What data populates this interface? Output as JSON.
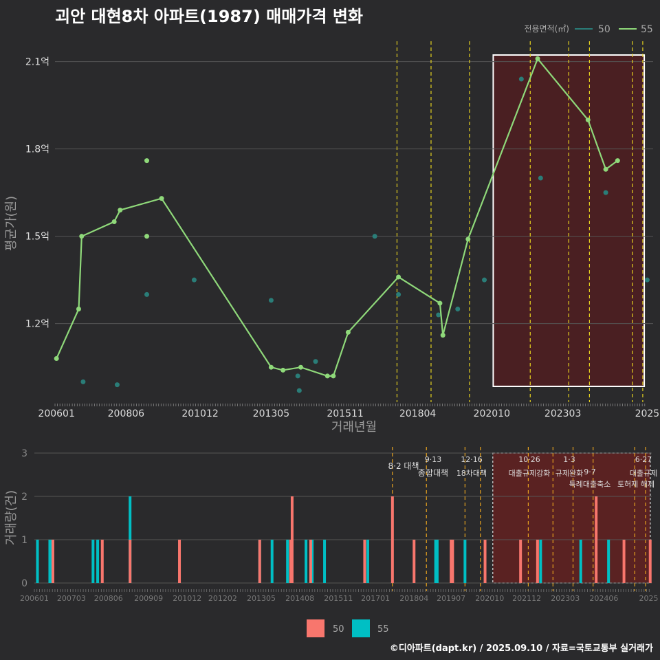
{
  "title": "괴안 대현8차 아파트(1987) 매매가격 변화",
  "footer": "©디아파트(dapt.kr) / 2025.09.10 / 자료=국토교통부 실거래가",
  "colors": {
    "background": "#2a2a2c",
    "grid": "#555555",
    "line55": "#8fd97a",
    "dot50": "#2a7d78",
    "bar50": "#f8766d",
    "bar55": "#00bfc4",
    "policy": "#e6d21f",
    "policyBar": "#e6a21f",
    "highlight": "#4a1f22"
  },
  "chart_data": [
    {
      "type": "line",
      "title": "괴안 대현8차 아파트(1987) 매매가격 변화",
      "xlabel": "거래년월",
      "ylabel": "평균가(원)",
      "x_ticks": [
        "200601",
        "200806",
        "201012",
        "201305",
        "201511",
        "201804",
        "202010",
        "202303",
        "2025"
      ],
      "y_ticks": [
        "1.2억",
        "1.5억",
        "1.8억",
        "2.1억"
      ],
      "ylim": [
        0.93,
        2.17
      ],
      "legend": {
        "title": "전용면적(㎡)",
        "entries": [
          "50",
          "55"
        ],
        "position": "top-right"
      },
      "series": [
        {
          "name": "55",
          "style": "line",
          "points": [
            [
              2006.05,
              1.08
            ],
            [
              2006.8,
              1.25
            ],
            [
              2006.9,
              1.5
            ],
            [
              2008.0,
              1.55
            ],
            [
              2008.2,
              1.59
            ],
            [
              2009.6,
              1.63
            ],
            [
              2013.3,
              1.05
            ],
            [
              2013.7,
              1.04
            ],
            [
              2014.3,
              1.05
            ],
            [
              2015.2,
              1.02
            ],
            [
              2015.4,
              1.02
            ],
            [
              2015.9,
              1.17
            ],
            [
              2017.6,
              1.36
            ],
            [
              2019.0,
              1.27
            ],
            [
              2019.1,
              1.16
            ],
            [
              2019.95,
              1.49
            ],
            [
              2022.3,
              2.11
            ],
            [
              2024.0,
              1.9
            ],
            [
              2024.6,
              1.73
            ],
            [
              2025.0,
              1.76
            ]
          ],
          "extra_points": [
            [
              2009.1,
              1.76
            ],
            [
              2009.1,
              1.5
            ]
          ]
        },
        {
          "name": "50",
          "style": "points",
          "points": [
            [
              2006.95,
              1.0
            ],
            [
              2008.1,
              0.99
            ],
            [
              2009.1,
              1.3
            ],
            [
              2010.7,
              1.35
            ],
            [
              2013.3,
              1.28
            ],
            [
              2014.2,
              1.02
            ],
            [
              2014.25,
              0.97
            ],
            [
              2014.8,
              1.07
            ],
            [
              2016.8,
              1.5
            ],
            [
              2017.6,
              1.3
            ],
            [
              2018.95,
              1.23
            ],
            [
              2019.6,
              1.25
            ],
            [
              2020.5,
              1.35
            ],
            [
              2021.75,
              2.04
            ],
            [
              2022.4,
              1.7
            ],
            [
              2024.6,
              1.65
            ],
            [
              2026.0,
              1.35
            ]
          ]
        }
      ],
      "policy_dates": [
        2017.55,
        2018.7,
        2020.0,
        2022.05,
        2023.35,
        2024.05,
        2025.5,
        2025.85
      ],
      "highlight_range": [
        2020.8,
        2025.9
      ]
    },
    {
      "type": "bar",
      "ylabel": "거래량(건)",
      "x_ticks": [
        "200601",
        "200703",
        "200806",
        "200909",
        "201012",
        "201202",
        "201305",
        "201408",
        "201511",
        "201701",
        "201804",
        "201907",
        "202010",
        "202112",
        "202303",
        "202406",
        "2025"
      ],
      "y_ticks": [
        "0",
        "1",
        "2",
        "3"
      ],
      "ylim": [
        0,
        3
      ],
      "legend": {
        "entries": [
          "50",
          "55"
        ],
        "position": "bottom"
      },
      "series": [
        {
          "name": "55",
          "bars": [
            [
              2006.1,
              1
            ],
            [
              2006.5,
              1
            ],
            [
              2006.55,
              1
            ],
            [
              2007.9,
              1
            ],
            [
              2008.05,
              1
            ],
            [
              2009.1,
              2
            ],
            [
              2013.3,
              1
            ],
            [
              2013.7,
              1
            ],
            [
              2014.2,
              1
            ],
            [
              2014.8,
              1
            ],
            [
              2015.0,
              1
            ],
            [
              2015.4,
              1
            ],
            [
              2016.8,
              1
            ],
            [
              2019.0,
              1
            ],
            [
              2019.05,
              1
            ],
            [
              2019.95,
              1
            ],
            [
              2022.4,
              1
            ],
            [
              2023.7,
              1
            ],
            [
              2024.6,
              1
            ]
          ]
        },
        {
          "name": "50",
          "bars": [
            [
              2006.6,
              1
            ],
            [
              2008.2,
              1
            ],
            [
              2009.1,
              1
            ],
            [
              2010.7,
              1
            ],
            [
              2013.3,
              1
            ],
            [
              2014.3,
              1
            ],
            [
              2014.35,
              2
            ],
            [
              2014.95,
              1
            ],
            [
              2016.7,
              1
            ],
            [
              2017.6,
              2
            ],
            [
              2018.3,
              1
            ],
            [
              2019.5,
              1
            ],
            [
              2019.55,
              1
            ],
            [
              2020.6,
              1
            ],
            [
              2021.75,
              1
            ],
            [
              2022.3,
              1
            ],
            [
              2024.2,
              2
            ],
            [
              2025.1,
              1
            ],
            [
              2025.95,
              1
            ]
          ]
        }
      ],
      "annotations": [
        {
          "date": "8·2 대책",
          "text": ""
        },
        {
          "date": "9·13",
          "text": "종합대책"
        },
        {
          "date": "12·16",
          "text": "18차대책"
        },
        {
          "date": "10·26",
          "text": "대출규제강화"
        },
        {
          "date": "1·3",
          "text": "규제완화"
        },
        {
          "date": "9·7",
          "text": "특례대출축소"
        },
        {
          "date": "6·27",
          "text": "대출규제"
        },
        {
          "date": "",
          "text": "토허제 해제"
        }
      ]
    }
  ]
}
